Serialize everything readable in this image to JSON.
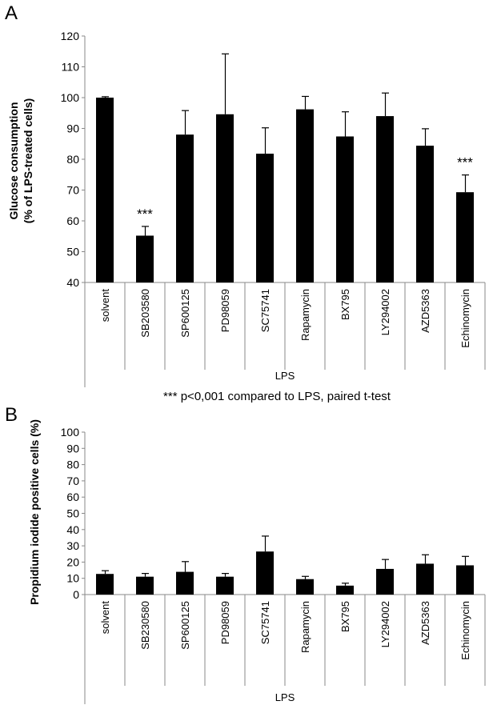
{
  "chart_data": [
    {
      "type": "bar",
      "panel": "A",
      "ylabel_lines": [
        "Glucose consumption",
        "(% of LPS-treated cells)"
      ],
      "xgroup_label": "LPS",
      "ylim": [
        40,
        120
      ],
      "yticks": [
        40,
        50,
        60,
        70,
        80,
        90,
        100,
        110,
        120
      ],
      "categories": [
        "solvent",
        "SB203580",
        "SP600125",
        "PD98059",
        "SC75741",
        "Rapamycin",
        "BX795",
        "LY294002",
        "AZD5363",
        "Echinomycin"
      ],
      "values": [
        100,
        55.2,
        88,
        94.6,
        81.8,
        96.2,
        87.4,
        94,
        84.4,
        69.3
      ],
      "errors": [
        0.3,
        3,
        7.8,
        19.6,
        8.4,
        4.2,
        8,
        7.5,
        5.5,
        5.6
      ],
      "annotations": [
        {
          "category": "SB203580",
          "text": "***"
        },
        {
          "category": "Echinomycin",
          "text": "***"
        }
      ],
      "footnote": "*** p<0,001 compared to LPS, paired t-test",
      "bar_color": "#000000"
    },
    {
      "type": "bar",
      "panel": "B",
      "ylabel": "Propidium iodide positive cells (%)",
      "xgroup_label": "LPS",
      "ylim": [
        0,
        100
      ],
      "yticks": [
        0,
        10,
        20,
        30,
        40,
        50,
        60,
        70,
        80,
        90,
        100
      ],
      "categories": [
        "solvent",
        "SB230580",
        "SP600125",
        "PD98059",
        "SC75741",
        "Rapamycin",
        "BX795",
        "LY294002",
        "AZD5363",
        "Echinomycin"
      ],
      "values": [
        12.7,
        11,
        14,
        11,
        26.5,
        9.5,
        5.5,
        15.8,
        19,
        18
      ],
      "errors": [
        2,
        2,
        6.3,
        2,
        9.5,
        1.7,
        1.5,
        5.8,
        5.5,
        5.5
      ],
      "bar_color": "#000000"
    }
  ]
}
